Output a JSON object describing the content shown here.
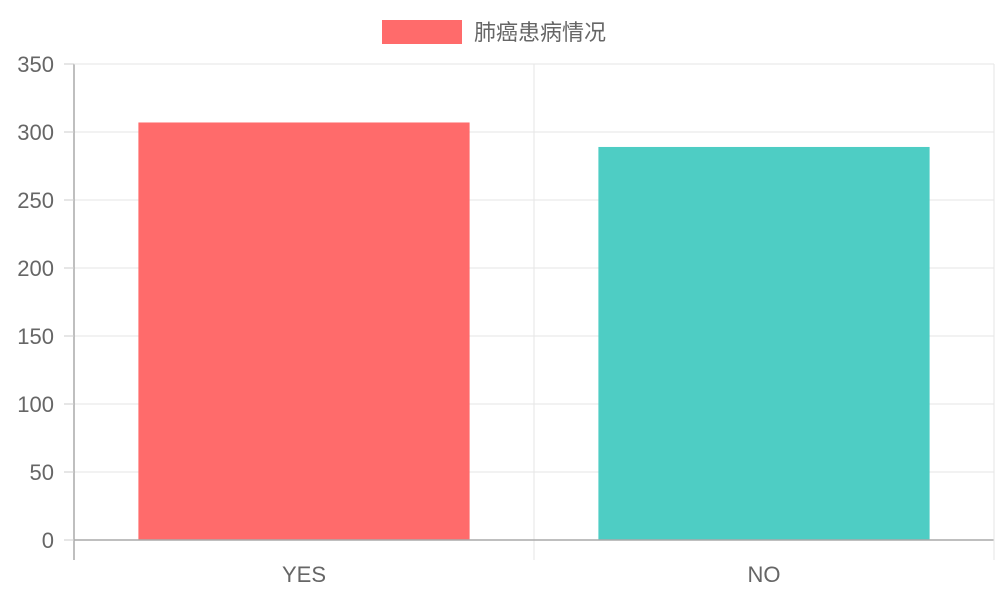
{
  "chart_data": {
    "type": "bar",
    "categories": [
      "YES",
      "NO"
    ],
    "series": [
      {
        "name": "肺癌患病情况",
        "values": [
          307,
          289
        ],
        "colors": [
          "#ff6b6b",
          "#4ecdc4"
        ]
      }
    ],
    "ylim": [
      0,
      350
    ],
    "y_ticks": [
      0,
      50,
      100,
      150,
      200,
      250,
      300,
      350
    ],
    "grid": true,
    "legend": "top-center",
    "legend_color": "#ff6b6b",
    "title": "",
    "xlabel": "",
    "ylabel": ""
  }
}
